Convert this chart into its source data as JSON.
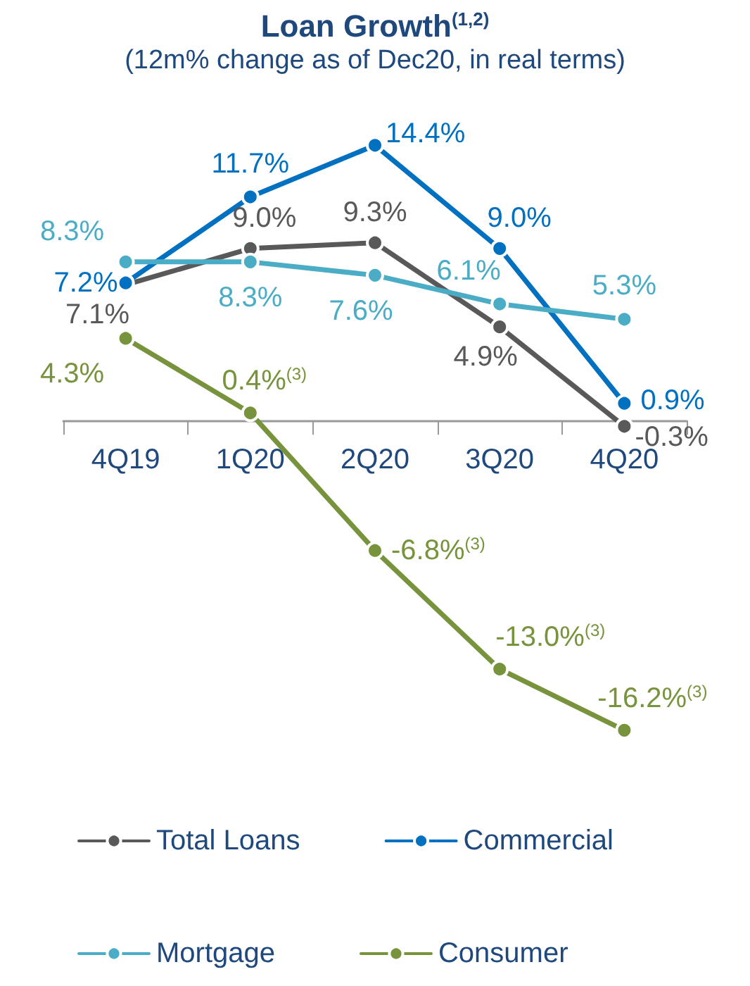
{
  "chart_data": {
    "type": "line",
    "title": "Loan Growth$^{(1,2)}$",
    "subtitle": "(12m% change as of Dec20, in real terms)",
    "categories": [
      "4Q19",
      "1Q20",
      "2Q20",
      "3Q20",
      "4Q20"
    ],
    "marker": "circle",
    "line_style": "solid",
    "grid": false,
    "legend": "bottom",
    "series": [
      {
        "name": "Total Loans",
        "color": "#595959",
        "values": [
          7.1,
          9.0,
          9.3,
          4.9,
          -0.3
        ],
        "value_labels": [
          "7.1%",
          "9.0%",
          "9.3%",
          "4.9%",
          "-0.3%"
        ]
      },
      {
        "name": "Commercial",
        "color": "#0070c0",
        "values": [
          7.2,
          11.7,
          14.4,
          9.0,
          0.9
        ],
        "value_labels": [
          "7.2%",
          "11.7%",
          "14.4%",
          "9.0%",
          "0.9%"
        ]
      },
      {
        "name": "Mortgage",
        "color": "#4bacc6",
        "values": [
          8.3,
          8.3,
          7.6,
          6.1,
          5.3
        ],
        "value_labels": [
          "8.3%",
          "8.3%",
          "7.6%",
          "6.1%",
          "5.3%"
        ]
      },
      {
        "name": "Consumer",
        "color": "#77933c",
        "values": [
          4.3,
          0.4,
          -6.8,
          -13.0,
          -16.2
        ],
        "value_labels": [
          "4.3%",
          "0.4%$^{(3)}$",
          "-6.8%$^{(3)}$",
          "-13.0%$^{(3)}$",
          "-16.2%$^{(3)}$"
        ]
      }
    ]
  }
}
